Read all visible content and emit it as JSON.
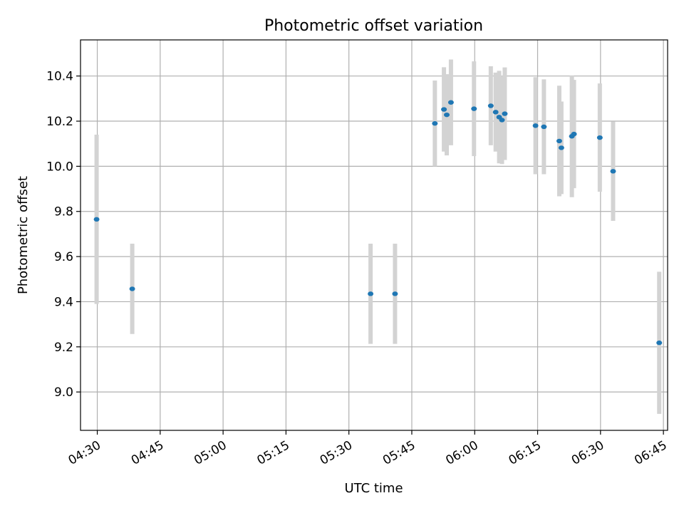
{
  "chart_data": {
    "type": "scatter",
    "title": "Photometric offset variation",
    "xlabel": "UTC time",
    "ylabel": "Photometric offset",
    "grid": true,
    "legend": "none",
    "xlim": [
      "04:26",
      "06:46"
    ],
    "ylim": [
      8.83,
      10.56
    ],
    "x_ticks": [
      "04:30",
      "04:45",
      "05:00",
      "05:15",
      "05:30",
      "05:45",
      "06:00",
      "06:15",
      "06:30",
      "06:45"
    ],
    "y_ticks": [
      "9.0",
      "9.2",
      "9.4",
      "9.6",
      "9.8",
      "10.0",
      "10.2",
      "10.4"
    ],
    "colors": {
      "point": "#1f77b4",
      "errorbar": "#d3d3d3",
      "grid": "#b0b0b0"
    },
    "series": [
      {
        "error_kind": "symmetric",
        "points": [
          {
            "x": "04:29:50",
            "y": 9.765,
            "err": 0.375
          },
          {
            "x": "04:38:20",
            "y": 9.457,
            "err": 0.2
          },
          {
            "x": "05:35:10",
            "y": 9.435,
            "err": 0.222
          },
          {
            "x": "05:41:00",
            "y": 9.435,
            "err": 0.222
          },
          {
            "x": "05:50:30",
            "y": 10.19,
            "err": 0.19
          },
          {
            "x": "05:52:40",
            "y": 10.252,
            "err": 0.187
          },
          {
            "x": "05:53:20",
            "y": 10.228,
            "err": 0.18
          },
          {
            "x": "05:54:20",
            "y": 10.283,
            "err": 0.19
          },
          {
            "x": "05:59:50",
            "y": 10.255,
            "err": 0.21
          },
          {
            "x": "06:03:50",
            "y": 10.268,
            "err": 0.175
          },
          {
            "x": "06:05:00",
            "y": 10.24,
            "err": 0.175
          },
          {
            "x": "06:05:50",
            "y": 10.218,
            "err": 0.205
          },
          {
            "x": "06:06:30",
            "y": 10.205,
            "err": 0.195
          },
          {
            "x": "06:07:10",
            "y": 10.233,
            "err": 0.205
          },
          {
            "x": "06:14:30",
            "y": 10.18,
            "err": 0.215
          },
          {
            "x": "06:16:30",
            "y": 10.175,
            "err": 0.21
          },
          {
            "x": "06:20:10",
            "y": 10.112,
            "err": 0.245
          },
          {
            "x": "06:20:40",
            "y": 10.082,
            "err": 0.205
          },
          {
            "x": "06:23:10",
            "y": 10.133,
            "err": 0.27
          },
          {
            "x": "06:23:40",
            "y": 10.143,
            "err": 0.24
          },
          {
            "x": "06:29:50",
            "y": 10.127,
            "err": 0.24
          },
          {
            "x": "06:33:00",
            "y": 9.978,
            "err": 0.22
          },
          {
            "x": "06:44:00",
            "y": 9.218,
            "err": 0.315
          }
        ]
      }
    ]
  }
}
